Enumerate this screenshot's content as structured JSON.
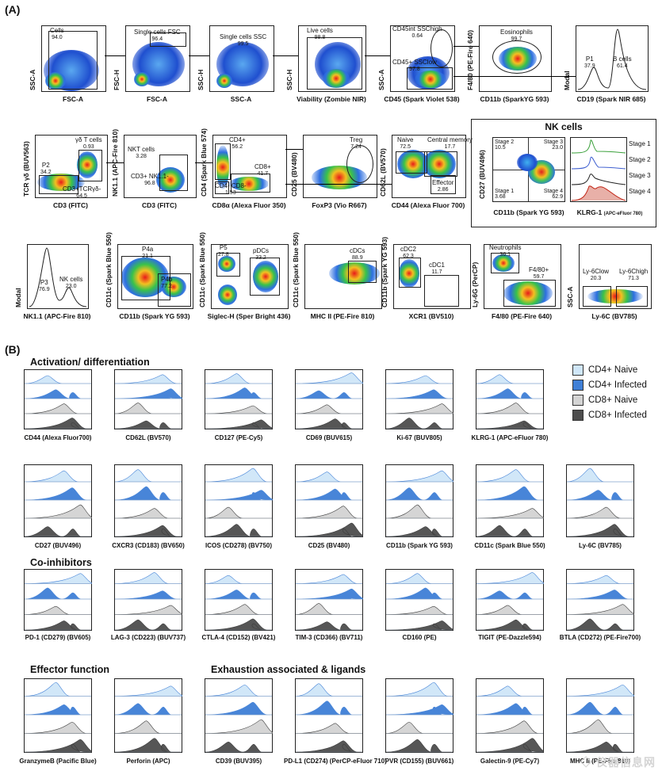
{
  "panels": {
    "a": "(A)",
    "b": "(B)"
  },
  "gating": [
    {
      "id": "g1",
      "x": "FSC-A",
      "y": "SSC-A",
      "gates": [
        {
          "label": "Cells",
          "value": "94.0"
        }
      ]
    },
    {
      "id": "g2",
      "x": "FSC-A",
      "y": "FSC-H",
      "gates": [
        {
          "label": "Single cells FSC",
          "value": "96.4"
        }
      ]
    },
    {
      "id": "g3",
      "x": "SSC-A",
      "y": "SSC-H",
      "gates": [
        {
          "label": "Single cells SSC",
          "value": "99.5"
        }
      ]
    },
    {
      "id": "g4",
      "x": "Viability (Zombie NIR)",
      "y": "SSC-H",
      "gates": [
        {
          "label": "Live cells",
          "value": "98.8"
        }
      ]
    },
    {
      "id": "g5",
      "x": "CD45 (Spark Violet 538)",
      "y": "SSC-A",
      "gates": [
        {
          "label": "CD45int SSChigh",
          "value": "0.64"
        },
        {
          "label": "CD45+ SSClow",
          "value": "97.8"
        }
      ]
    },
    {
      "id": "g6",
      "x": "CD11b (SparkYG 593)",
      "y": "F4/80 (PE-Fire 640)",
      "gates": [
        {
          "label": "Eosinophils",
          "value": "99.7"
        }
      ]
    },
    {
      "id": "g7",
      "x": "CD19 (Spark NIR 685)",
      "y": "Modal",
      "gates": [
        {
          "label": "P1",
          "value": "37.9"
        },
        {
          "label": "B cells",
          "value": "61.4"
        }
      ]
    },
    {
      "id": "g8",
      "x": "CD3 (FITC)",
      "y": "TCR γδ (BUV563)",
      "gates": [
        {
          "label": "γδ T cells",
          "value": "0.93"
        },
        {
          "label": "P2",
          "value": "34.2"
        },
        {
          "label": "CD3+TCRγδ-",
          "value": "64.5"
        }
      ]
    },
    {
      "id": "g9",
      "x": "CD3 (FITC)",
      "y": "NK1.1 (APC-Fire 810)",
      "gates": [
        {
          "label": "NKT cells",
          "value": "3.28"
        },
        {
          "label": "CD3+ NK1.1-",
          "value": "96.8"
        }
      ]
    },
    {
      "id": "g10",
      "x": "CD8α (Alexa Fluor 350)",
      "y": "CD4 (Spark Blue 574)",
      "gates": [
        {
          "label": "CD4+",
          "value": "56.2"
        },
        {
          "label": "CD8+",
          "value": "41.7"
        },
        {
          "label": "CD4- CD8-",
          "value": "1.53"
        }
      ]
    },
    {
      "id": "g11",
      "x": "FoxP3 (Vio R667)",
      "y": "CD25 (BV480)",
      "gates": [
        {
          "label": "Treg",
          "value": "7.24"
        }
      ]
    },
    {
      "id": "g12",
      "x": "CD44 (Alexa Fluor 700)",
      "y": "CD62L (BV570)",
      "gates": [
        {
          "label": "Naive",
          "value": "72.5"
        },
        {
          "label": "Central memory",
          "value": "17.7"
        },
        {
          "label": "Effector",
          "value": "2.86"
        }
      ]
    },
    {
      "id": "g14",
      "x": "NK1.1 (APC-Fire 810)",
      "y": "Modal",
      "gates": [
        {
          "label": "P3",
          "value": "76.9"
        },
        {
          "label": "NK cells",
          "value": "23.0"
        }
      ]
    },
    {
      "id": "g15",
      "x": "CD11b (Spark YG 593)",
      "y": "CD11c (Spark Blue 550)",
      "gates": [
        {
          "label": "P4a",
          "value": "21.1"
        },
        {
          "label": "P4b",
          "value": "77.2"
        }
      ]
    },
    {
      "id": "g16",
      "x": "Siglec-H (Sper Bright 436)",
      "y": "CD11c (Spark Blue 550)",
      "gates": [
        {
          "label": "P5",
          "value": "27.8"
        },
        {
          "label": "pDCs",
          "value": "33.2"
        }
      ]
    },
    {
      "id": "g17",
      "x": "MHC II (PE-Fire 810)",
      "y": "CD11c (Spark Blue 550)",
      "gates": [
        {
          "label": "cDCs",
          "value": "88.9"
        }
      ]
    },
    {
      "id": "g18",
      "x": "XCR1 (BV510)",
      "y": "CD11b (Spark YG 593)",
      "gates": [
        {
          "label": "cDC2",
          "value": "62.3"
        },
        {
          "label": "cDC1",
          "value": "11.7"
        }
      ]
    },
    {
      "id": "g19",
      "x": "F4/80 (PE-Fire 640)",
      "y": "Ly-6G (PerCP)",
      "gates": [
        {
          "label": "Neutrophils",
          "value": "36.1"
        },
        {
          "label": "F4/80+",
          "value": "59.7"
        }
      ]
    },
    {
      "id": "g20",
      "x": "Ly-6C (BV785)",
      "y": "SSC-A",
      "gates": [
        {
          "label": "Ly-6Clow",
          "value": "20.3"
        },
        {
          "label": "Ly-6Chigh",
          "value": "71.3"
        }
      ]
    }
  ],
  "nk": {
    "title": "NK cells",
    "x": "CD11b (Spark YG 593)",
    "y": "CD27 (BUV496)",
    "quads": [
      {
        "label": "Stage 2",
        "value": "10.5"
      },
      {
        "label": "Stage 3",
        "value": "23.0"
      },
      {
        "label": "Stage 1",
        "value": "3.68"
      },
      {
        "label": "Stage 4",
        "value": "62.9"
      }
    ],
    "hist_x": "KLRG-1",
    "hist_x_small": "(APC-eFluor 780)",
    "stages": [
      "Stage 1",
      "Stage 2",
      "Stage 3",
      "Stage 4"
    ]
  },
  "legend": [
    {
      "label": "CD4+ Naive",
      "color": "#cfe6f8"
    },
    {
      "label": "CD4+ Infected",
      "color": "#3f7fd6"
    },
    {
      "label": "CD8+ Naive",
      "color": "#d3d3d3"
    },
    {
      "label": "CD8+ Infected",
      "color": "#4d4d4d"
    }
  ],
  "sections": {
    "act": "Activation/ differentiation",
    "coinh": "Co-inhibitors",
    "eff": "Effector function",
    "exh": "Exhaustion associated & ligands"
  },
  "row1": [
    "CD44 (Alexa Fluor700)",
    "CD62L (BV570)",
    "CD127 (PE-Cy5)",
    "CD69 (BUV615)",
    "Ki-67 (BUV805)",
    "KLRG-1 (APC-eFluor 780)"
  ],
  "row2": [
    "CD27 (BUV496)",
    "CXCR3 (CD183) (BV650)",
    "ICOS (CD278) (BV750)",
    "CD25 (BV480)",
    "CD11b (Spark YG 593)",
    "CD11c (Spark Blue 550)",
    "Ly-6C (BV785)"
  ],
  "row3": [
    "PD-1 (CD279) (BV605)",
    "LAG-3 (CD223) (BUV737)",
    "CTLA-4 (CD152) (BV421)",
    "TIM-3 (CD366) (BV711)",
    "CD160 (PE)",
    "TIGIT (PE-Dazzle594)",
    "BTLA (CD272) (PE-Fire700)"
  ],
  "row4": [
    "GranzymeB (Pacific Blue)",
    "Perforin (APC)",
    "CD39 (BUV395)",
    "PD-L1 (CD274) (PerCP-eFluor 710)",
    "PVR (CD155) (BUV661)",
    "Galectin-9 (PE-Cy7)",
    "MHC II (PE-Fire 810)"
  ]
}
